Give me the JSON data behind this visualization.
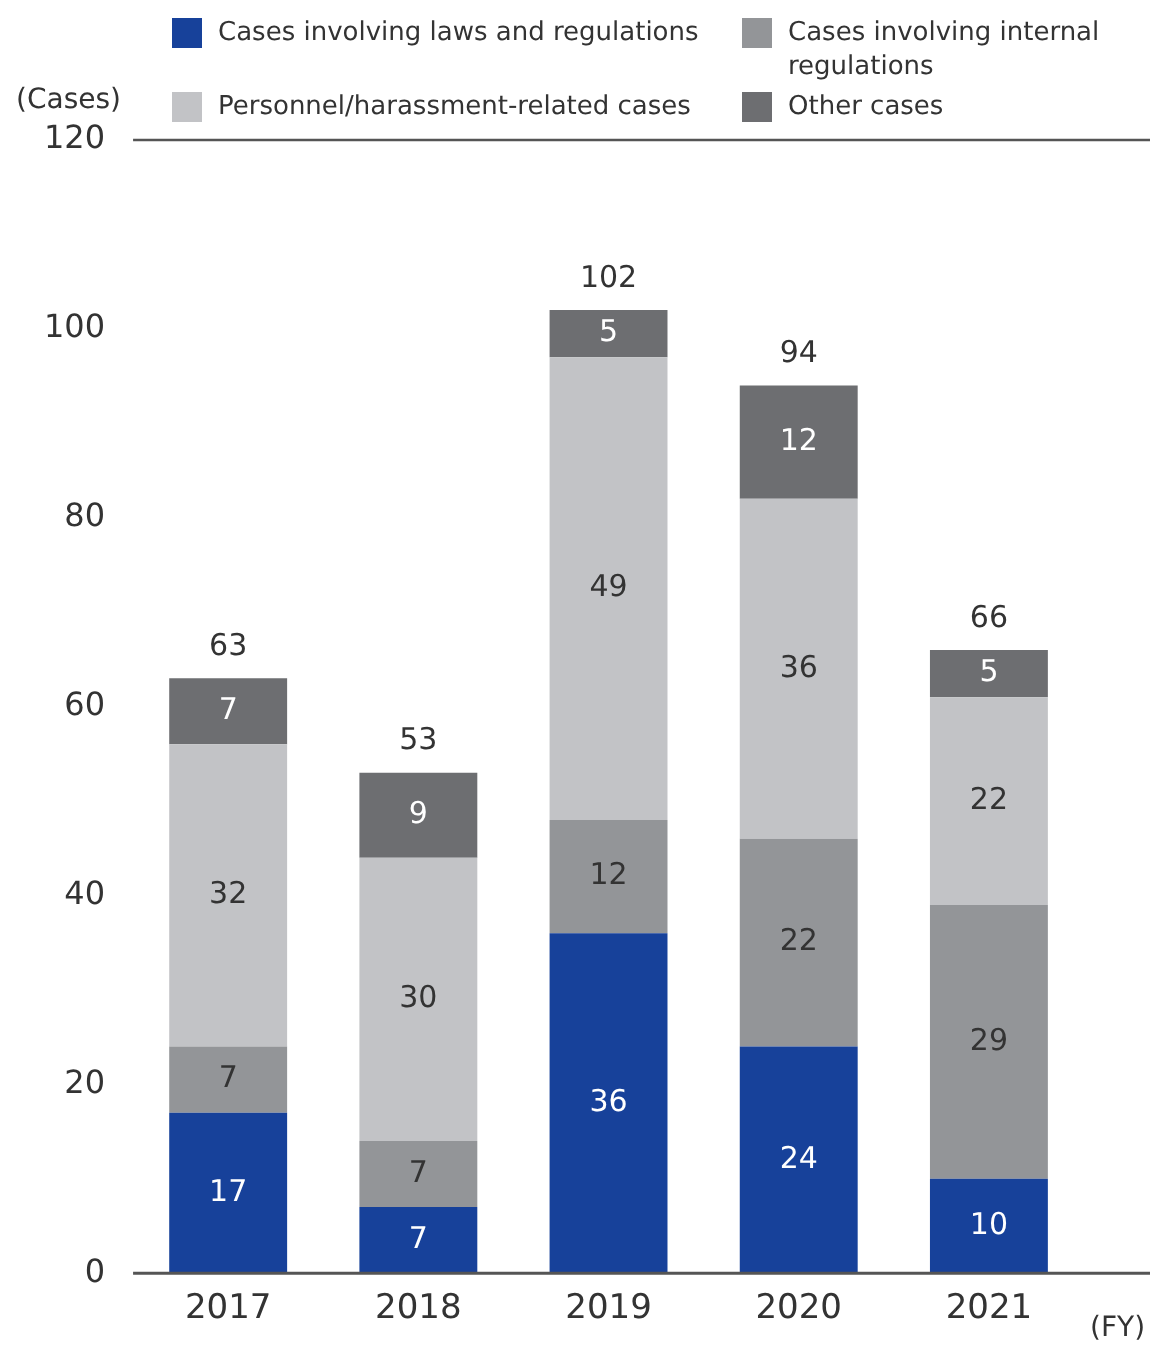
{
  "chart_data": {
    "type": "bar",
    "stacked": true,
    "ylabel": "(Cases)",
    "xlabel": "(FY)",
    "categories": [
      "2017",
      "2018",
      "2019",
      "2020",
      "2021"
    ],
    "series": [
      {
        "name": "Cases involving laws and regulations",
        "color": "#17419a",
        "values": [
          17,
          7,
          36,
          24,
          10
        ]
      },
      {
        "name": "Cases involving internal regulations",
        "color": "#939598",
        "values": [
          7,
          7,
          12,
          22,
          29
        ]
      },
      {
        "name": "Personnel/harassment-related cases",
        "color": "#c2c3c6",
        "values": [
          32,
          30,
          49,
          36,
          22
        ]
      },
      {
        "name": "Other cases",
        "color": "#6d6e71",
        "values": [
          7,
          9,
          5,
          12,
          5
        ]
      }
    ],
    "ylim": [
      0,
      120
    ],
    "yticks": [
      0,
      20,
      40,
      60,
      80,
      100,
      120
    ],
    "data_labels": true,
    "totals": [
      "63",
      "53",
      "102",
      "94",
      "66"
    ],
    "grid": false,
    "legend": "top"
  }
}
